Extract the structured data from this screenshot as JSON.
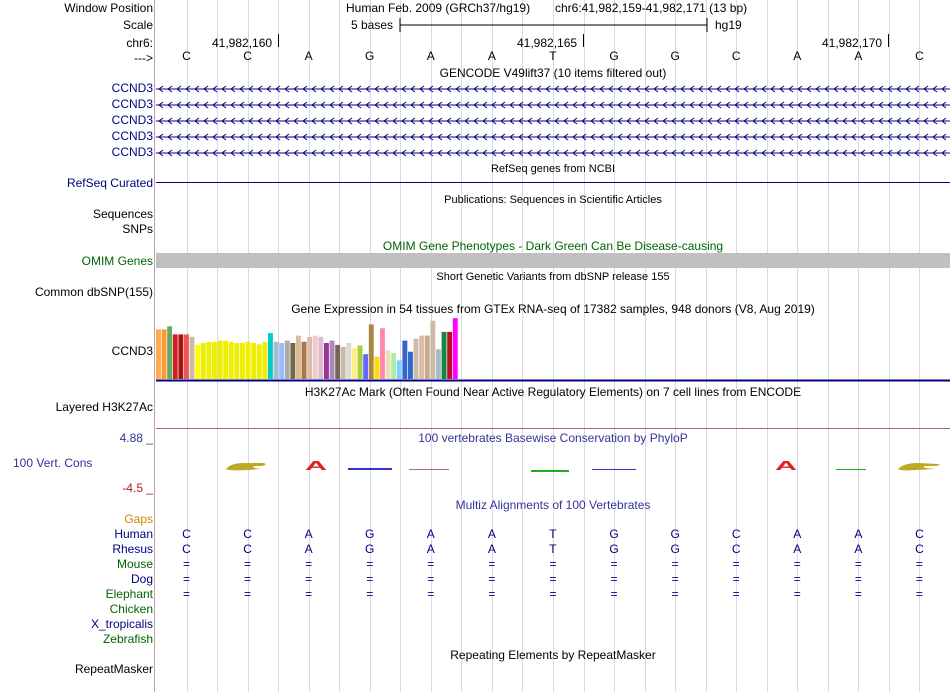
{
  "header": {
    "window_position_label": "Window Position",
    "assembly_text": "Human Feb. 2009 (GRCh37/hg19)",
    "position_text": "chr6:41,982,159-41,982,171 (13 bp)",
    "scale_label": "Scale",
    "scale_text": "5 bases",
    "scale_db": "hg19",
    "chrom_label": "chr6:",
    "coord_labels": [
      "41,982,160",
      "41,982,165",
      "41,982,170"
    ],
    "strand_label": "--->",
    "bases": [
      "C",
      "C",
      "A",
      "G",
      "A",
      "A",
      "T",
      "G",
      "G",
      "C",
      "A",
      "A",
      "C"
    ]
  },
  "tracks": {
    "gencode": {
      "title": "GENCODE V49lift37 (10 items filtered out)",
      "items": [
        "CCND3",
        "CCND3",
        "CCND3",
        "CCND3",
        "CCND3"
      ]
    },
    "refseq": {
      "title": "RefSeq genes from NCBI",
      "label": "RefSeq Curated"
    },
    "publications": {
      "title": "Publications: Sequences in Scientific Articles",
      "label1": "Sequences",
      "label2": "SNPs"
    },
    "omim": {
      "title": "OMIM Gene Phenotypes - Dark Green Can Be Disease-causing",
      "label": "OMIM Genes"
    },
    "dbsnp": {
      "title": "Short Genetic Variants from dbSNP release 155",
      "label": "Common dbSNP(155)"
    },
    "gtex": {
      "title": "Gene Expression in 54 tissues from GTEx RNA-seq of 17382 samples, 948 donors (V8, Aug 2019)",
      "label": "CCND3",
      "values": [
        0.8,
        0.8,
        0.85,
        0.72,
        0.72,
        0.72,
        0.68,
        0.55,
        0.58,
        0.6,
        0.6,
        0.62,
        0.62,
        0.6,
        0.58,
        0.58,
        0.6,
        0.58,
        0.56,
        0.6,
        0.74,
        0.6,
        0.58,
        0.62,
        0.58,
        0.7,
        0.6,
        0.68,
        0.7,
        0.68,
        0.58,
        0.62,
        0.55,
        0.52,
        0.58,
        0.5,
        0.54,
        0.4,
        0.88,
        0.36,
        0.82,
        0.46,
        0.42,
        0.3,
        0.62,
        0.44,
        0.65,
        0.7,
        0.7,
        0.94,
        0.48,
        0.76,
        0.76,
        0.98
      ],
      "colors": [
        "#ffaa55",
        "#ff9933",
        "#66aa66",
        "#cc2222",
        "#aa1111",
        "#ee5555",
        "#ccbbaa",
        "#ffff00",
        "#eeee00",
        "#eeee00",
        "#eeee00",
        "#eeee00",
        "#eeee00",
        "#eeee00",
        "#eeee00",
        "#eeee00",
        "#eeee00",
        "#eeee00",
        "#eeee00",
        "#eeee00",
        "#00cccc",
        "#aabbcc",
        "#99bbff",
        "#aaaaaa",
        "#776644",
        "#ddbb99",
        "#aa7744",
        "#ddbbaa",
        "#eecccc",
        "#ddbbcc",
        "#993399",
        "#aa88bb",
        "#776655",
        "#ccbbaa",
        "#ddddcc",
        "#ffee88",
        "#aacc44",
        "#6666ff",
        "#aa8844",
        "#ffdd00",
        "#ff88aa",
        "#eeddbb",
        "#aaeeaa",
        "#88ccff",
        "#3366cc",
        "#3366cc",
        "#ccbbaa",
        "#ddbbaa",
        "#ccaa88",
        "#ccbbaa",
        "#aabbcc",
        "#118844",
        "#bb1122",
        "#ff00ff"
      ]
    },
    "h3k27ac": {
      "title": "H3K27Ac Mark (Often Found Near Active Regulatory Elements) on 7 cell lines from ENCODE",
      "label": "Layered H3K27Ac"
    },
    "cons": {
      "title": "100 vertebrates Basewise Conservation by PhyloP",
      "label": "100 Vert. Cons",
      "max": "4.88 _",
      "min": "-4.5 _"
    },
    "multiz": {
      "title": "Multiz Alignments of 100 Vertebrates",
      "gaps_label": "Gaps",
      "species": [
        "Human",
        "Rhesus",
        "Mouse",
        "Dog",
        "Elephant",
        "Chicken",
        "X_tropicalis",
        "Zebrafish"
      ],
      "human_bases": [
        "C",
        "C",
        "A",
        "G",
        "A",
        "A",
        "T",
        "G",
        "G",
        "C",
        "A",
        "A",
        "C"
      ],
      "rhesus_bases": [
        "C",
        "C",
        "A",
        "G",
        "A",
        "A",
        "T",
        "G",
        "G",
        "C",
        "A",
        "A",
        "C"
      ],
      "eq": "="
    },
    "repeatmasker": {
      "title": "Repeating Elements by RepeatMasker",
      "label": "RepeatMasker"
    }
  },
  "colors": {
    "navy": "#000080",
    "green": "#006400",
    "orange": "#cc8800",
    "cons_blue": "#333399"
  }
}
